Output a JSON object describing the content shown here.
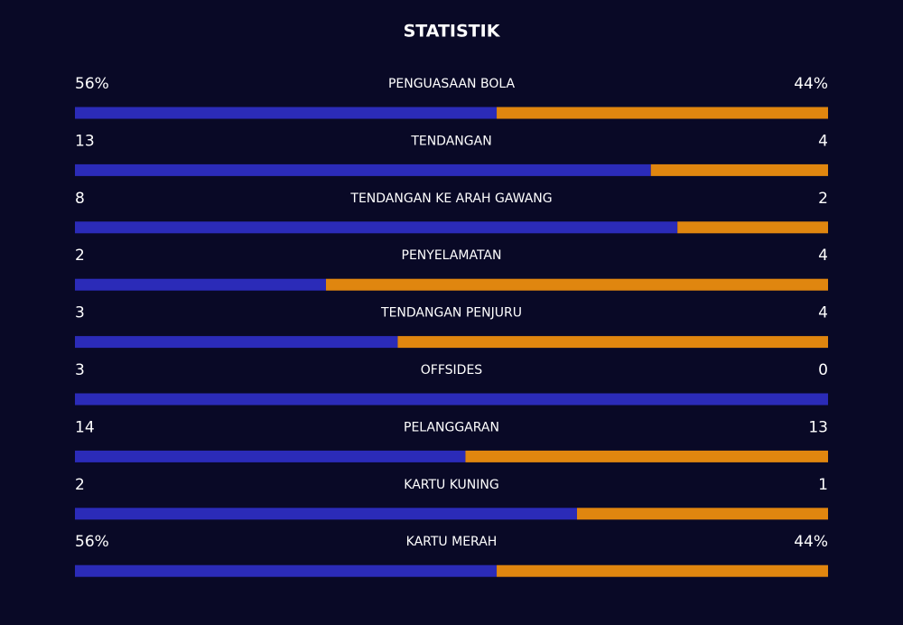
{
  "chart_data": {
    "type": "comparison-bars",
    "title": "STATISTIK",
    "categories": [
      "PENGUASAAN BOLA",
      "TENDANGAN",
      "TENDANGAN KE ARAH GAWANG",
      "PENYELAMATAN",
      "TENDANGAN PENJURU",
      "OFFSIDES",
      "PELANGGARAN",
      "KARTU KUNING",
      "KARTU MERAH"
    ],
    "series": [
      {
        "color": "#2b2bb8",
        "values": [
          56,
          13,
          8,
          2,
          3,
          3,
          14,
          2,
          56
        ],
        "value_labels": [
          "56%",
          "13",
          "8",
          "2",
          "3",
          "3",
          "14",
          "2",
          "56%"
        ]
      },
      {
        "color": "#e0860f",
        "values": [
          44,
          4,
          2,
          4,
          4,
          0,
          13,
          1,
          44
        ],
        "value_labels": [
          "44%",
          "4",
          "2",
          "4",
          "4",
          "0",
          "13",
          "1",
          "44%"
        ]
      }
    ]
  }
}
